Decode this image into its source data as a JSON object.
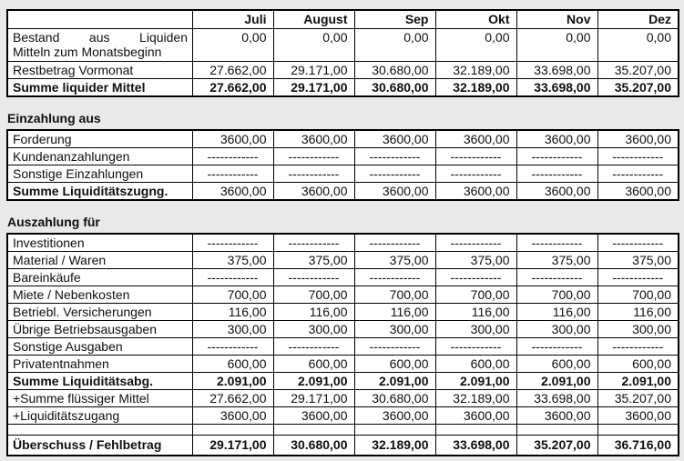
{
  "page": {
    "background": "#e9e9e9",
    "table_background": "#ffffff",
    "border_color": "#000000",
    "text_color": "#0f0f0f"
  },
  "months": [
    "Juli",
    "August",
    "Sep",
    "Okt",
    "Nov",
    "Dez"
  ],
  "opening_table": {
    "rows": [
      {
        "label_lines": [
          "Bestand aus Liquiden",
          "Mitteln zum Monatsbeginn"
        ],
        "label": "Bestand aus Liquiden Mitteln zum Monatsbeginn",
        "values": [
          "0,00",
          "0,00",
          "0,00",
          "0,00",
          "0,00",
          "0,00"
        ],
        "style": "tall"
      },
      {
        "label": "Restbetrag Vormonat",
        "values": [
          "27.662,00",
          "29.171,00",
          "30.680,00",
          "32.189,00",
          "33.698,00",
          "35.207,00"
        ]
      },
      {
        "label": "Summe liquider Mittel",
        "values": [
          "27.662,00",
          "29.171,00",
          "30.680,00",
          "32.189,00",
          "33.698,00",
          "35.207,00"
        ],
        "style": "total"
      }
    ]
  },
  "inflow_section": {
    "title": "Einzahlung aus",
    "rows": [
      {
        "label": "Forderung",
        "values": [
          "3600,00",
          "3600,00",
          "3600,00",
          "3600,00",
          "3600,00",
          "3600,00"
        ]
      },
      {
        "label": "Kundenanzahlungen",
        "values": [
          "------------",
          "------------",
          "------------",
          "------------",
          "------------",
          "------------"
        ]
      },
      {
        "label": "Sonstige Einzahlungen",
        "values": [
          "------------",
          "------------",
          "------------",
          "------------",
          "------------",
          "------------"
        ]
      },
      {
        "label": "Summe Liquiditätszugng.",
        "values": [
          "3600,00",
          "3600,00",
          "3600,00",
          "3600,00",
          "3600,00",
          "3600,00"
        ],
        "style": "total-label"
      }
    ]
  },
  "outflow_section": {
    "title": "Auszahlung für",
    "rows": [
      {
        "label": "Investitionen",
        "values": [
          "------------",
          "------------",
          "------------",
          "------------",
          "------------",
          "------------"
        ]
      },
      {
        "label": "Material / Waren",
        "values": [
          "375,00",
          "375,00",
          "375,00",
          "375,00",
          "375,00",
          "375,00"
        ]
      },
      {
        "label": "Bareinkäufe",
        "values": [
          "------------",
          "------------",
          "------------",
          "------------",
          "------------",
          "------------"
        ]
      },
      {
        "label": "Miete / Nebenkosten",
        "values": [
          "700,00",
          "700,00",
          "700,00",
          "700,00",
          "700,00",
          "700,00"
        ]
      },
      {
        "label": "Betriebl. Versicherungen",
        "values": [
          "116,00",
          "116,00",
          "116,00",
          "116,00",
          "116,00",
          "116,00"
        ]
      },
      {
        "label": "Übrige Betriebsausgaben",
        "values": [
          "300,00",
          "300,00",
          "300,00",
          "300,00",
          "300,00",
          "300,00"
        ]
      },
      {
        "label": "Sonstige Ausgaben",
        "values": [
          "------------",
          "------------",
          "------------",
          "------------",
          "------------",
          "------------"
        ]
      },
      {
        "label": "Privatentnahmen",
        "values": [
          "600,00",
          "600,00",
          "600,00",
          "600,00",
          "600,00",
          "600,00"
        ]
      },
      {
        "label": "Summe Liquiditätsabg.",
        "values": [
          "2.091,00",
          "2.091,00",
          "2.091,00",
          "2.091,00",
          "2.091,00",
          "2.091,00"
        ],
        "style": "total"
      },
      {
        "label": "+Summe flüssiger Mittel",
        "values": [
          "27.662,00",
          "29.171,00",
          "30.680,00",
          "32.189,00",
          "33.698,00",
          "35.207,00"
        ]
      },
      {
        "label": "+Liquiditätszugang",
        "values": [
          "3600,00",
          "3600,00",
          "3600,00",
          "3600,00",
          "3600,00",
          "3600,00"
        ]
      },
      {
        "label": "",
        "values": [
          "",
          "",
          "",
          "",
          "",
          ""
        ],
        "style": "spacer"
      },
      {
        "label": "Überschuss / Fehlbetrag",
        "values": [
          "29.171,00",
          "30.680,00",
          "32.189,00",
          "33.698,00",
          "35.207,00",
          "36.716,00"
        ],
        "style": "grand"
      }
    ]
  }
}
